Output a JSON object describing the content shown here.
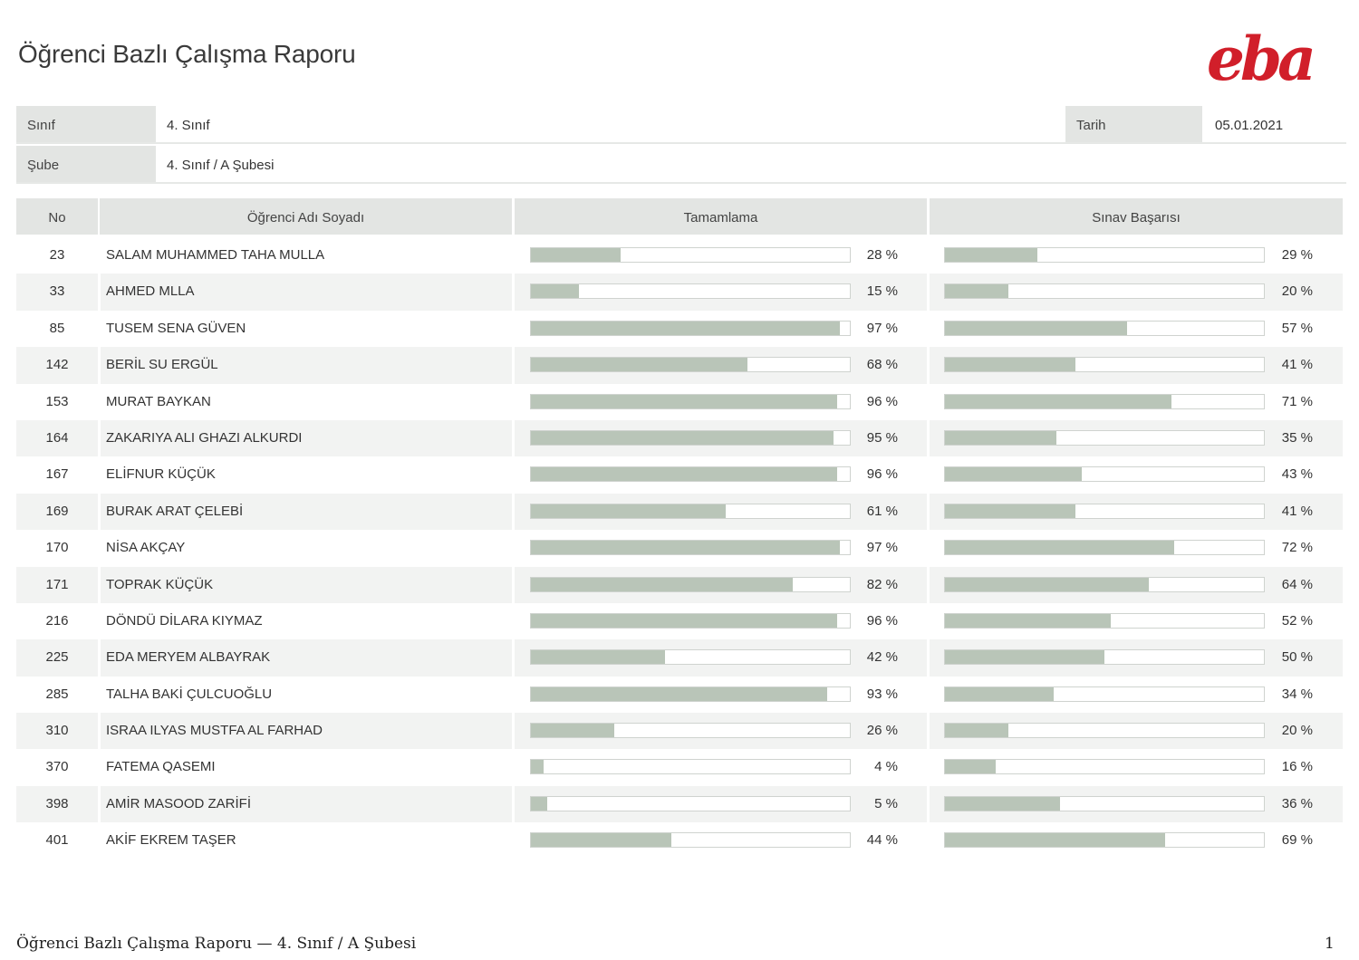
{
  "report": {
    "title": "Öğrenci Bazlı Çalışma Raporu",
    "logo": "eba"
  },
  "info": {
    "sinif_label": "Sınıf",
    "sinif_value": "4. Sınıf",
    "tarih_label": "Tarih",
    "tarih_value": "05.01.2021",
    "sube_label": "Şube",
    "sube_value": "4. Sınıf / A Şubesi"
  },
  "table": {
    "headers": {
      "no": "No",
      "name": "Öğrenci Adı Soyadı",
      "completion": "Tamamlama",
      "exam": "Sınav Başarısı"
    },
    "rows": [
      {
        "no": "23",
        "name": "SALAM MUHAMMED TAHA MULLA",
        "completion": 28,
        "completion_label": "28 %",
        "exam": 29,
        "exam_label": "29 %"
      },
      {
        "no": "33",
        "name": "AHMED MLLA",
        "completion": 15,
        "completion_label": "15 %",
        "exam": 20,
        "exam_label": "20 %"
      },
      {
        "no": "85",
        "name": "TUSEM SENA GÜVEN",
        "completion": 97,
        "completion_label": "97 %",
        "exam": 57,
        "exam_label": "57 %"
      },
      {
        "no": "142",
        "name": "BERİL SU ERGÜL",
        "completion": 68,
        "completion_label": "68 %",
        "exam": 41,
        "exam_label": "41 %"
      },
      {
        "no": "153",
        "name": "MURAT BAYKAN",
        "completion": 96,
        "completion_label": "96 %",
        "exam": 71,
        "exam_label": "71 %"
      },
      {
        "no": "164",
        "name": "ZAKARIYA ALI GHAZI ALKURDI",
        "completion": 95,
        "completion_label": "95 %",
        "exam": 35,
        "exam_label": "35 %"
      },
      {
        "no": "167",
        "name": "ELİFNUR KÜÇÜK",
        "completion": 96,
        "completion_label": "96 %",
        "exam": 43,
        "exam_label": "43 %"
      },
      {
        "no": "169",
        "name": "BURAK ARAT ÇELEBİ",
        "completion": 61,
        "completion_label": "61 %",
        "exam": 41,
        "exam_label": "41 %"
      },
      {
        "no": "170",
        "name": "NİSA AKÇAY",
        "completion": 97,
        "completion_label": "97 %",
        "exam": 72,
        "exam_label": "72 %"
      },
      {
        "no": "171",
        "name": "TOPRAK KÜÇÜK",
        "completion": 82,
        "completion_label": "82 %",
        "exam": 64,
        "exam_label": "64 %"
      },
      {
        "no": "216",
        "name": "DÖNDÜ DİLARA KIYMAZ",
        "completion": 96,
        "completion_label": "96 %",
        "exam": 52,
        "exam_label": "52 %"
      },
      {
        "no": "225",
        "name": "EDA MERYEM ALBAYRAK",
        "completion": 42,
        "completion_label": "42 %",
        "exam": 50,
        "exam_label": "50 %"
      },
      {
        "no": "285",
        "name": "TALHA BAKİ ÇULCUOĞLU",
        "completion": 93,
        "completion_label": "93 %",
        "exam": 34,
        "exam_label": "34 %"
      },
      {
        "no": "310",
        "name": "ISRAA ILYAS MUSTFA AL FARHAD",
        "completion": 26,
        "completion_label": "26 %",
        "exam": 20,
        "exam_label": "20 %"
      },
      {
        "no": "370",
        "name": "FATEMA QASEMI",
        "completion": 4,
        "completion_label": "4 %",
        "exam": 16,
        "exam_label": "16 %"
      },
      {
        "no": "398",
        "name": "AMİR MASOOD ZARİFİ",
        "completion": 5,
        "completion_label": "5 %",
        "exam": 36,
        "exam_label": "36 %"
      },
      {
        "no": "401",
        "name": "AKİF EKREM TAŞER",
        "completion": 44,
        "completion_label": "44 %",
        "exam": 69,
        "exam_label": "69 %"
      }
    ]
  },
  "footer": {
    "left": "Öğrenci Bazlı Çalışma Raporu — 4. Sınıf / A Şubesi",
    "page": "1"
  },
  "colors": {
    "bar_fill": "#b9c5b8",
    "header_bg": "#e3e5e3",
    "logo": "#d11f2a"
  }
}
